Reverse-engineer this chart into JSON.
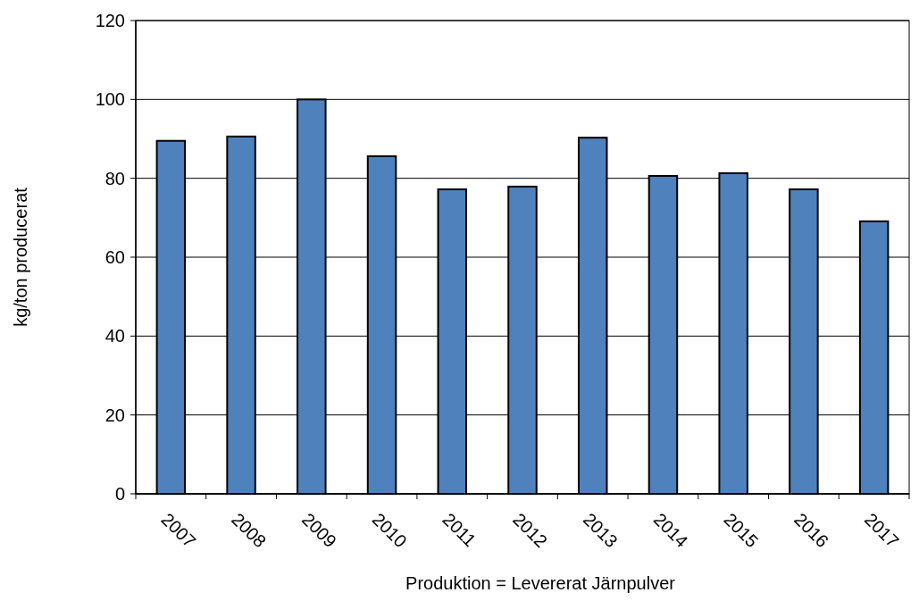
{
  "chart_data": {
    "type": "bar",
    "xlabel": "Produktion = Levererat Järnpulver",
    "ylabel": "kg/ton producerat",
    "categories": [
      "2007",
      "2008",
      "2009",
      "2010",
      "2011",
      "2012",
      "2013",
      "2014",
      "2015",
      "2016",
      "2017"
    ],
    "values": [
      89.5,
      90.6,
      100,
      85.6,
      77.2,
      77.9,
      90.3,
      80.6,
      81.3,
      77.2,
      69.1
    ],
    "color": "#4f81bd",
    "ylim": [
      0,
      120
    ],
    "yticks": [
      0,
      20,
      40,
      60,
      80,
      100,
      120
    ],
    "grid": "y"
  }
}
